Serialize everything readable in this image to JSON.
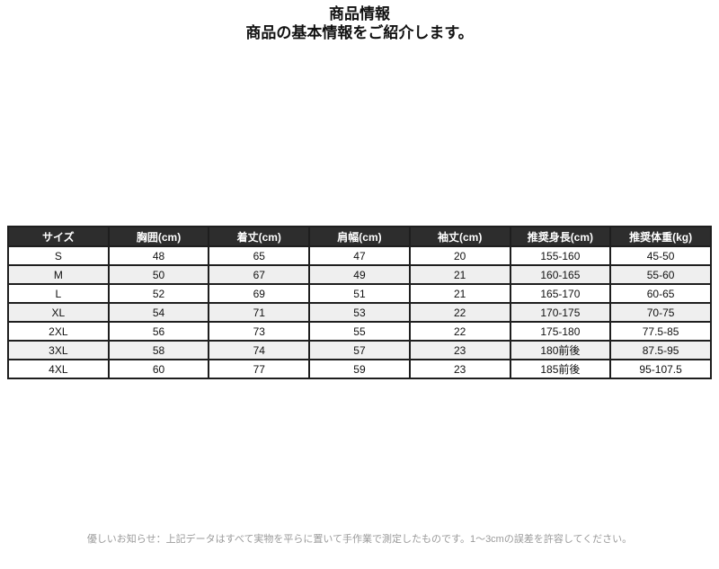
{
  "page": {
    "title": "商品情報",
    "subtitle": "商品の基本情報をご紹介します。",
    "footer_note": "優しいお知らせ：上記データはすべて実物を平らに置いて手作業で測定したものです。1～3cmの誤差を許容してください。"
  },
  "size_table": {
    "headers": [
      "サイズ",
      "胸囲(cm)",
      "着丈(cm)",
      "肩幅(cm)",
      "袖丈(cm)",
      "推奨身長(cm)",
      "推奨体重(kg)"
    ],
    "rows": [
      [
        "S",
        "48",
        "65",
        "47",
        "20",
        "155-160",
        "45-50"
      ],
      [
        "M",
        "50",
        "67",
        "49",
        "21",
        "160-165",
        "55-60"
      ],
      [
        "L",
        "52",
        "69",
        "51",
        "21",
        "165-170",
        "60-65"
      ],
      [
        "XL",
        "54",
        "71",
        "53",
        "22",
        "170-175",
        "70-75"
      ],
      [
        "2XL",
        "56",
        "73",
        "55",
        "22",
        "175-180",
        "77.5-85"
      ],
      [
        "3XL",
        "58",
        "74",
        "57",
        "23",
        "180前後",
        "87.5-95"
      ],
      [
        "4XL",
        "60",
        "77",
        "59",
        "23",
        "185前後",
        "95-107.5"
      ]
    ]
  },
  "colors": {
    "header_bg": "#2d2d2d",
    "header_text": "#ffffff",
    "table_border": "#1e1e1e",
    "zebra_row_bg": "#efefef",
    "footer_text": "#9a9a9a"
  }
}
